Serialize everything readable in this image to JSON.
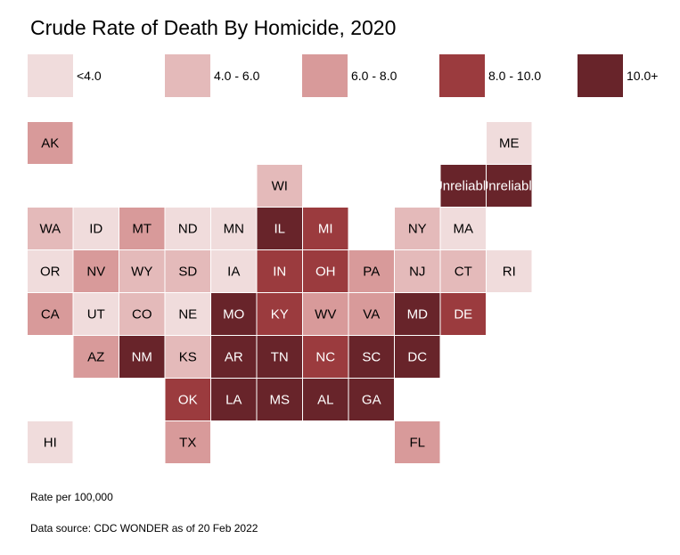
{
  "chart_data": {
    "type": "tile-map",
    "title": "Crude Rate of Death By Homicide, 2020",
    "legend": [
      {
        "label": "<4.0",
        "color": "#f0dcdc"
      },
      {
        "label": "4.0 - 6.0",
        "color": "#e4baba"
      },
      {
        "label": "6.0 - 8.0",
        "color": "#d89a9a"
      },
      {
        "label": "8.0 - 10.0",
        "color": "#9b3b3e"
      },
      {
        "label": "10.0+",
        "color": "#68242a"
      }
    ],
    "tiles": [
      {
        "label": "AK",
        "bin": 2,
        "row": 0,
        "col": 0
      },
      {
        "label": "ME",
        "bin": 0,
        "row": 0,
        "col": 10
      },
      {
        "label": "WI",
        "bin": 1,
        "row": 1,
        "col": 5
      },
      {
        "label": "Unreliable",
        "bin": 4,
        "row": 1,
        "col": 9
      },
      {
        "label": "Unreliable",
        "bin": 4,
        "row": 1,
        "col": 10
      },
      {
        "label": "WA",
        "bin": 1,
        "row": 2,
        "col": 0
      },
      {
        "label": "ID",
        "bin": 0,
        "row": 2,
        "col": 1
      },
      {
        "label": "MT",
        "bin": 2,
        "row": 2,
        "col": 2
      },
      {
        "label": "ND",
        "bin": 0,
        "row": 2,
        "col": 3
      },
      {
        "label": "MN",
        "bin": 0,
        "row": 2,
        "col": 4
      },
      {
        "label": "IL",
        "bin": 4,
        "row": 2,
        "col": 5
      },
      {
        "label": "MI",
        "bin": 3,
        "row": 2,
        "col": 6
      },
      {
        "label": "NY",
        "bin": 1,
        "row": 2,
        "col": 8
      },
      {
        "label": "MA",
        "bin": 0,
        "row": 2,
        "col": 9
      },
      {
        "label": "OR",
        "bin": 0,
        "row": 3,
        "col": 0
      },
      {
        "label": "NV",
        "bin": 2,
        "row": 3,
        "col": 1
      },
      {
        "label": "WY",
        "bin": 1,
        "row": 3,
        "col": 2
      },
      {
        "label": "SD",
        "bin": 1,
        "row": 3,
        "col": 3
      },
      {
        "label": "IA",
        "bin": 0,
        "row": 3,
        "col": 4
      },
      {
        "label": "IN",
        "bin": 3,
        "row": 3,
        "col": 5
      },
      {
        "label": "OH",
        "bin": 3,
        "row": 3,
        "col": 6
      },
      {
        "label": "PA",
        "bin": 2,
        "row": 3,
        "col": 7
      },
      {
        "label": "NJ",
        "bin": 1,
        "row": 3,
        "col": 8
      },
      {
        "label": "CT",
        "bin": 1,
        "row": 3,
        "col": 9
      },
      {
        "label": "RI",
        "bin": 0,
        "row": 3,
        "col": 10
      },
      {
        "label": "CA",
        "bin": 2,
        "row": 4,
        "col": 0
      },
      {
        "label": "UT",
        "bin": 0,
        "row": 4,
        "col": 1
      },
      {
        "label": "CO",
        "bin": 1,
        "row": 4,
        "col": 2
      },
      {
        "label": "NE",
        "bin": 0,
        "row": 4,
        "col": 3
      },
      {
        "label": "MO",
        "bin": 4,
        "row": 4,
        "col": 4
      },
      {
        "label": "KY",
        "bin": 3,
        "row": 4,
        "col": 5
      },
      {
        "label": "WV",
        "bin": 2,
        "row": 4,
        "col": 6
      },
      {
        "label": "VA",
        "bin": 2,
        "row": 4,
        "col": 7
      },
      {
        "label": "MD",
        "bin": 4,
        "row": 4,
        "col": 8
      },
      {
        "label": "DE",
        "bin": 3,
        "row": 4,
        "col": 9
      },
      {
        "label": "AZ",
        "bin": 2,
        "row": 5,
        "col": 1
      },
      {
        "label": "NM",
        "bin": 4,
        "row": 5,
        "col": 2
      },
      {
        "label": "KS",
        "bin": 1,
        "row": 5,
        "col": 3
      },
      {
        "label": "AR",
        "bin": 4,
        "row": 5,
        "col": 4
      },
      {
        "label": "TN",
        "bin": 4,
        "row": 5,
        "col": 5
      },
      {
        "label": "NC",
        "bin": 3,
        "row": 5,
        "col": 6
      },
      {
        "label": "SC",
        "bin": 4,
        "row": 5,
        "col": 7
      },
      {
        "label": "DC",
        "bin": 4,
        "row": 5,
        "col": 8
      },
      {
        "label": "OK",
        "bin": 3,
        "row": 6,
        "col": 3
      },
      {
        "label": "LA",
        "bin": 4,
        "row": 6,
        "col": 4
      },
      {
        "label": "MS",
        "bin": 4,
        "row": 6,
        "col": 5
      },
      {
        "label": "AL",
        "bin": 4,
        "row": 6,
        "col": 6
      },
      {
        "label": "GA",
        "bin": 4,
        "row": 6,
        "col": 7
      },
      {
        "label": "HI",
        "bin": 0,
        "row": 7,
        "col": 0
      },
      {
        "label": "TX",
        "bin": 2,
        "row": 7,
        "col": 3
      },
      {
        "label": "FL",
        "bin": 2,
        "row": 7,
        "col": 8
      }
    ],
    "notes": {
      "rate_label": "Rate per 100,000",
      "source": "Data source: CDC WONDER as of 20 Feb 2022"
    }
  }
}
